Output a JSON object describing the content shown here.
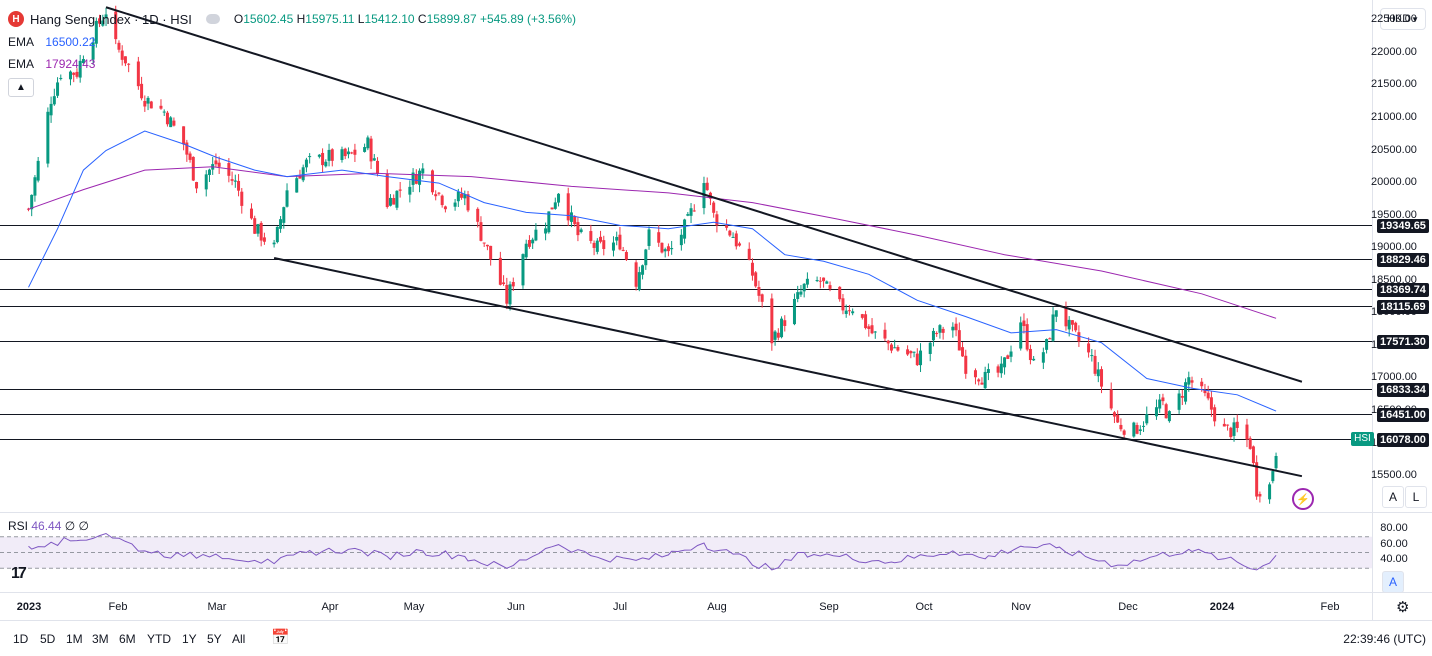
{
  "header": {
    "symbol_logo": "H",
    "symbol_title": "Hang Seng Index · 1D · HSI",
    "ohlc": {
      "o_key": "O",
      "o": "15602.45",
      "h_key": "H",
      "h": "15975.11",
      "l_key": "L",
      "l": "15412.10",
      "c_key": "C",
      "c": "15899.87",
      "change": "+545.89 (+3.56%)"
    },
    "ema_fast": {
      "label": "EMA",
      "value": "16500.22",
      "color": "#2962ff"
    },
    "ema_slow": {
      "label": "EMA",
      "value": "17924.43",
      "color": "#9c27b0"
    },
    "collapse_icon": "chevron-up-icon"
  },
  "price_axis": {
    "currency": "HKD",
    "ticks": [
      "22500.00",
      "22000.00",
      "21500.00",
      "21000.00",
      "20500.00",
      "20000.00",
      "19500.00",
      "19000.00",
      "18500.00",
      "18000.00",
      "17500.00",
      "17000.00",
      "16500.00",
      "16000.00",
      "15500.00"
    ],
    "symbol_tag": "HSI",
    "auto_btn": "A",
    "log_btn": "L"
  },
  "rsi": {
    "label": "RSI",
    "value": "46.44",
    "extra": "∅ ∅",
    "ticks": [
      "80.00",
      "60.00",
      "40.00"
    ],
    "auto_btn": "A",
    "color": "#7e57c2"
  },
  "time_axis": {
    "labels": [
      {
        "text": "2023",
        "bold": true
      },
      {
        "text": "Feb",
        "bold": false
      },
      {
        "text": "Mar",
        "bold": false
      },
      {
        "text": "Apr",
        "bold": false
      },
      {
        "text": "May",
        "bold": false
      },
      {
        "text": "Jun",
        "bold": false
      },
      {
        "text": "Jul",
        "bold": false
      },
      {
        "text": "Aug",
        "bold": false
      },
      {
        "text": "Sep",
        "bold": false
      },
      {
        "text": "Oct",
        "bold": false
      },
      {
        "text": "Nov",
        "bold": false
      },
      {
        "text": "Dec",
        "bold": false
      },
      {
        "text": "2024",
        "bold": true
      },
      {
        "text": "Feb",
        "bold": false
      }
    ]
  },
  "bottom_bar": {
    "ranges": [
      "1D",
      "5D",
      "1M",
      "3M",
      "6M",
      "YTD",
      "1Y",
      "5Y",
      "All"
    ],
    "calendar_icon": "calendar-range-icon",
    "clock": "22:39:46 (UTC)"
  },
  "chart_data": {
    "type": "candlestick",
    "symbol": "HSI",
    "interval": "1D",
    "up_color": "#089981",
    "down_color": "#f23645",
    "ylim": [
      14950,
      22750
    ],
    "horizontal_levels": [
      {
        "value": 19349.65,
        "label": "19349.65"
      },
      {
        "value": 18829.46,
        "label": "18829.46"
      },
      {
        "value": 18369.74,
        "label": "18369.74"
      },
      {
        "value": 18115.69,
        "label": "18115.69"
      },
      {
        "value": 17571.3,
        "label": "17571.30"
      },
      {
        "value": 16833.34,
        "label": "16833.34"
      },
      {
        "value": 16451.0,
        "label": "16451.00"
      },
      {
        "value": 16078.0,
        "label": "16078.00"
      }
    ],
    "trendlines": [
      {
        "name": "upper",
        "from": {
          "date": "2023-01-27",
          "value": 22700
        },
        "to": {
          "date": "2024-02-01",
          "value": 16950
        }
      },
      {
        "name": "lower",
        "from": {
          "date": "2023-03-20",
          "value": 18850
        },
        "to": {
          "date": "2024-02-01",
          "value": 15500
        }
      }
    ],
    "close_path": [
      {
        "date": "2023-01-03",
        "close": 19600
      },
      {
        "date": "2023-01-06",
        "close": 20300
      },
      {
        "date": "2023-01-10",
        "close": 21300
      },
      {
        "date": "2023-01-13",
        "close": 21700
      },
      {
        "date": "2023-01-18",
        "close": 21700
      },
      {
        "date": "2023-01-20",
        "close": 22000
      },
      {
        "date": "2023-01-27",
        "close": 22650
      },
      {
        "date": "2023-01-30",
        "close": 22100
      },
      {
        "date": "2023-02-02",
        "close": 21900
      },
      {
        "date": "2023-02-08",
        "close": 21300
      },
      {
        "date": "2023-02-14",
        "close": 21100
      },
      {
        "date": "2023-02-20",
        "close": 20600
      },
      {
        "date": "2023-02-24",
        "close": 20000
      },
      {
        "date": "2023-03-02",
        "close": 20300
      },
      {
        "date": "2023-03-08",
        "close": 20000
      },
      {
        "date": "2023-03-14",
        "close": 19300
      },
      {
        "date": "2023-03-20",
        "close": 19000
      },
      {
        "date": "2023-03-24",
        "close": 19900
      },
      {
        "date": "2023-03-30",
        "close": 20300
      },
      {
        "date": "2023-04-06",
        "close": 20400
      },
      {
        "date": "2023-04-12",
        "close": 20400
      },
      {
        "date": "2023-04-18",
        "close": 20600
      },
      {
        "date": "2023-04-24",
        "close": 19700
      },
      {
        "date": "2023-04-28",
        "close": 19900
      },
      {
        "date": "2023-05-05",
        "close": 20200
      },
      {
        "date": "2023-05-12",
        "close": 19700
      },
      {
        "date": "2023-05-18",
        "close": 19800
      },
      {
        "date": "2023-05-24",
        "close": 19100
      },
      {
        "date": "2023-05-31",
        "close": 18200
      },
      {
        "date": "2023-06-06",
        "close": 19100
      },
      {
        "date": "2023-06-12",
        "close": 19400
      },
      {
        "date": "2023-06-16",
        "close": 19900
      },
      {
        "date": "2023-06-22",
        "close": 19200
      },
      {
        "date": "2023-06-28",
        "close": 19000
      },
      {
        "date": "2023-07-05",
        "close": 19100
      },
      {
        "date": "2023-07-10",
        "close": 18500
      },
      {
        "date": "2023-07-14",
        "close": 19200
      },
      {
        "date": "2023-07-20",
        "close": 18900
      },
      {
        "date": "2023-07-26",
        "close": 19400
      },
      {
        "date": "2023-07-31",
        "close": 20100
      },
      {
        "date": "2023-08-03",
        "close": 19500
      },
      {
        "date": "2023-08-09",
        "close": 19200
      },
      {
        "date": "2023-08-15",
        "close": 18600
      },
      {
        "date": "2023-08-21",
        "close": 17600
      },
      {
        "date": "2023-08-25",
        "close": 17900
      },
      {
        "date": "2023-08-31",
        "close": 18400
      },
      {
        "date": "2023-09-05",
        "close": 18500
      },
      {
        "date": "2023-09-11",
        "close": 18100
      },
      {
        "date": "2023-09-15",
        "close": 18100
      },
      {
        "date": "2023-09-21",
        "close": 17700
      },
      {
        "date": "2023-09-27",
        "close": 17500
      },
      {
        "date": "2023-10-05",
        "close": 17300
      },
      {
        "date": "2023-10-11",
        "close": 17700
      },
      {
        "date": "2023-10-16",
        "close": 17800
      },
      {
        "date": "2023-10-20",
        "close": 17200
      },
      {
        "date": "2023-10-26",
        "close": 17000
      },
      {
        "date": "2023-10-31",
        "close": 17100
      },
      {
        "date": "2023-11-06",
        "close": 17900
      },
      {
        "date": "2023-11-10",
        "close": 17200
      },
      {
        "date": "2023-11-14",
        "close": 17500
      },
      {
        "date": "2023-11-17",
        "close": 18100
      },
      {
        "date": "2023-11-22",
        "close": 17700
      },
      {
        "date": "2023-11-28",
        "close": 17300
      },
      {
        "date": "2023-12-01",
        "close": 16900
      },
      {
        "date": "2023-12-06",
        "close": 16300
      },
      {
        "date": "2023-12-11",
        "close": 16200
      },
      {
        "date": "2023-12-15",
        "close": 16400
      },
      {
        "date": "2023-12-20",
        "close": 16600
      },
      {
        "date": "2023-12-22",
        "close": 16400
      },
      {
        "date": "2023-12-28",
        "close": 17000
      },
      {
        "date": "2024-01-02",
        "close": 16700
      },
      {
        "date": "2024-01-08",
        "close": 16200
      },
      {
        "date": "2024-01-12",
        "close": 16200
      },
      {
        "date": "2024-01-16",
        "close": 16000
      },
      {
        "date": "2024-01-18",
        "close": 15300
      },
      {
        "date": "2024-01-22",
        "close": 15350
      },
      {
        "date": "2024-01-24",
        "close": 15900
      }
    ],
    "ema_fast_points": [
      {
        "date": "2023-01-03",
        "value": 18400
      },
      {
        "date": "2023-01-12",
        "value": 19300
      },
      {
        "date": "2023-01-20",
        "value": 20200
      },
      {
        "date": "2023-01-27",
        "value": 20500
      },
      {
        "date": "2023-02-08",
        "value": 20800
      },
      {
        "date": "2023-02-20",
        "value": 20600
      },
      {
        "date": "2023-03-02",
        "value": 20400
      },
      {
        "date": "2023-03-14",
        "value": 20200
      },
      {
        "date": "2023-03-24",
        "value": 20100
      },
      {
        "date": "2023-04-10",
        "value": 20200
      },
      {
        "date": "2023-04-24",
        "value": 20100
      },
      {
        "date": "2023-05-10",
        "value": 20000
      },
      {
        "date": "2023-05-24",
        "value": 19700
      },
      {
        "date": "2023-06-06",
        "value": 19550
      },
      {
        "date": "2023-06-20",
        "value": 19500
      },
      {
        "date": "2023-07-05",
        "value": 19350
      },
      {
        "date": "2023-07-20",
        "value": 19300
      },
      {
        "date": "2023-08-03",
        "value": 19400
      },
      {
        "date": "2023-08-15",
        "value": 19300
      },
      {
        "date": "2023-08-25",
        "value": 18900
      },
      {
        "date": "2023-09-06",
        "value": 18800
      },
      {
        "date": "2023-09-20",
        "value": 18600
      },
      {
        "date": "2023-10-05",
        "value": 18200
      },
      {
        "date": "2023-10-20",
        "value": 17950
      },
      {
        "date": "2023-11-03",
        "value": 17700
      },
      {
        "date": "2023-11-17",
        "value": 17750
      },
      {
        "date": "2023-12-01",
        "value": 17550
      },
      {
        "date": "2023-12-15",
        "value": 17000
      },
      {
        "date": "2023-12-29",
        "value": 16850
      },
      {
        "date": "2024-01-12",
        "value": 16750
      },
      {
        "date": "2024-01-24",
        "value": 16500
      }
    ],
    "ema_slow_points": [
      {
        "date": "2023-01-03",
        "value": 19600
      },
      {
        "date": "2023-01-20",
        "value": 19900
      },
      {
        "date": "2023-02-08",
        "value": 20200
      },
      {
        "date": "2023-03-01",
        "value": 20250
      },
      {
        "date": "2023-03-24",
        "value": 20100
      },
      {
        "date": "2023-04-20",
        "value": 20150
      },
      {
        "date": "2023-05-20",
        "value": 20100
      },
      {
        "date": "2023-06-20",
        "value": 19950
      },
      {
        "date": "2023-07-20",
        "value": 19850
      },
      {
        "date": "2023-08-15",
        "value": 19700
      },
      {
        "date": "2023-09-10",
        "value": 19450
      },
      {
        "date": "2023-10-05",
        "value": 19200
      },
      {
        "date": "2023-11-01",
        "value": 18900
      },
      {
        "date": "2023-12-01",
        "value": 18650
      },
      {
        "date": "2024-01-01",
        "value": 18300
      },
      {
        "date": "2024-01-24",
        "value": 17924
      }
    ],
    "rsi_ylim": [
      0,
      100
    ],
    "rsi_levels": [
      70,
      50,
      30
    ],
    "rsi_points": [
      {
        "date": "2023-01-03",
        "value": 58
      },
      {
        "date": "2023-01-10",
        "value": 63
      },
      {
        "date": "2023-01-18",
        "value": 65
      },
      {
        "date": "2023-01-27",
        "value": 74
      },
      {
        "date": "2023-02-08",
        "value": 52
      },
      {
        "date": "2023-02-20",
        "value": 45
      },
      {
        "date": "2023-03-02",
        "value": 48
      },
      {
        "date": "2023-03-14",
        "value": 40
      },
      {
        "date": "2023-03-20",
        "value": 36
      },
      {
        "date": "2023-03-30",
        "value": 50
      },
      {
        "date": "2023-04-12",
        "value": 54
      },
      {
        "date": "2023-04-24",
        "value": 45
      },
      {
        "date": "2023-05-05",
        "value": 52
      },
      {
        "date": "2023-05-18",
        "value": 45
      },
      {
        "date": "2023-05-31",
        "value": 30
      },
      {
        "date": "2023-06-12",
        "value": 55
      },
      {
        "date": "2023-06-16",
        "value": 60
      },
      {
        "date": "2023-06-28",
        "value": 44
      },
      {
        "date": "2023-07-10",
        "value": 40
      },
      {
        "date": "2023-07-20",
        "value": 47
      },
      {
        "date": "2023-07-31",
        "value": 62
      },
      {
        "date": "2023-08-09",
        "value": 48
      },
      {
        "date": "2023-08-21",
        "value": 28
      },
      {
        "date": "2023-08-31",
        "value": 50
      },
      {
        "date": "2023-09-11",
        "value": 45
      },
      {
        "date": "2023-09-27",
        "value": 38
      },
      {
        "date": "2023-10-16",
        "value": 52
      },
      {
        "date": "2023-10-26",
        "value": 42
      },
      {
        "date": "2023-11-06",
        "value": 58
      },
      {
        "date": "2023-11-17",
        "value": 56
      },
      {
        "date": "2023-12-06",
        "value": 34
      },
      {
        "date": "2023-12-15",
        "value": 42
      },
      {
        "date": "2023-12-28",
        "value": 54
      },
      {
        "date": "2024-01-08",
        "value": 42
      },
      {
        "date": "2024-01-18",
        "value": 28
      },
      {
        "date": "2024-01-24",
        "value": 46.44
      }
    ]
  }
}
